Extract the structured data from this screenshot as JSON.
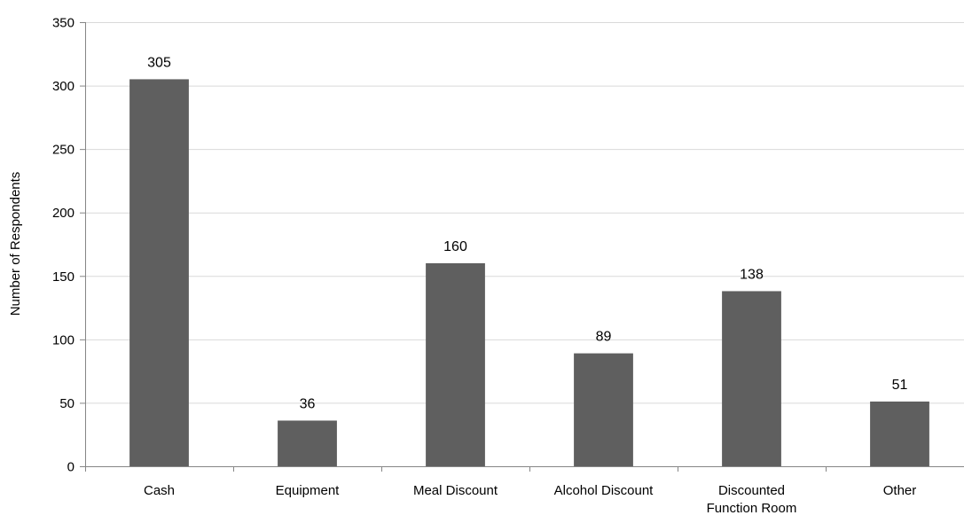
{
  "chart_data": {
    "type": "bar",
    "title": "",
    "xlabel": "",
    "ylabel": "Number of Respondents",
    "categories": [
      "Cash",
      "Equipment",
      "Meal Discount",
      "Alcohol Discount",
      "Discounted Function Room",
      "Other"
    ],
    "category_lines": [
      [
        "Cash"
      ],
      [
        "Equipment"
      ],
      [
        "Meal Discount"
      ],
      [
        "Alcohol Discount"
      ],
      [
        "Discounted",
        "Function Room"
      ],
      [
        "Other"
      ]
    ],
    "values": [
      305,
      36,
      160,
      89,
      138,
      51
    ],
    "ylim": [
      0,
      350
    ],
    "yticks": [
      0,
      50,
      100,
      150,
      200,
      250,
      300,
      350
    ],
    "grid": true,
    "legend": "none",
    "bar_color": "#5f5f5f",
    "grid_color": "#d9d9d9",
    "axis_color": "#868686"
  }
}
